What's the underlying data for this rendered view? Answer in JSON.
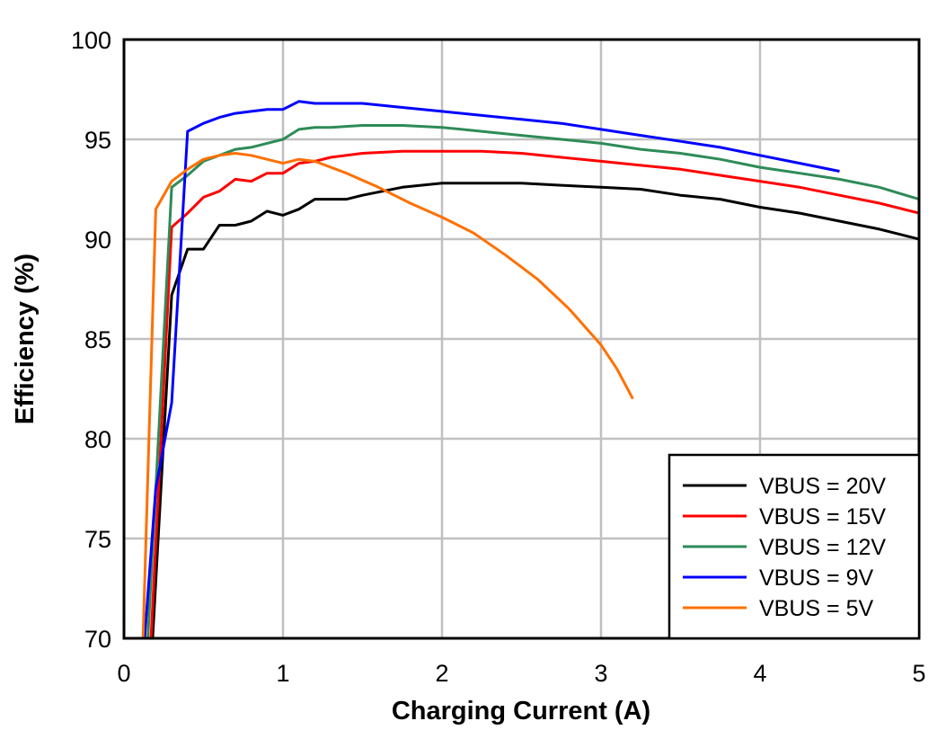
{
  "chart_data": {
    "type": "line",
    "title": "",
    "xlabel": "Charging Current (A)",
    "ylabel": "Efficiency (%)",
    "xlim": [
      0,
      5
    ],
    "ylim": [
      70,
      100
    ],
    "xticks": [
      "0",
      "1",
      "2",
      "3",
      "4",
      "5"
    ],
    "yticks": [
      "70",
      "75",
      "80",
      "85",
      "90",
      "95",
      "100"
    ],
    "grid": true,
    "legend_position": "lower right",
    "series": [
      {
        "name": "VBUS = 20V",
        "color": "#000000",
        "x": [
          0.18,
          0.3,
          0.4,
          0.5,
          0.6,
          0.7,
          0.8,
          0.9,
          1.0,
          1.1,
          1.2,
          1.3,
          1.4,
          1.5,
          1.75,
          2.0,
          2.25,
          2.5,
          2.75,
          3.0,
          3.25,
          3.5,
          3.75,
          4.0,
          4.25,
          4.5,
          4.75,
          5.0
        ],
        "y": [
          70,
          87.2,
          89.5,
          89.5,
          90.7,
          90.7,
          90.9,
          91.4,
          91.2,
          91.5,
          92.0,
          92.0,
          92.0,
          92.2,
          92.6,
          92.8,
          92.8,
          92.8,
          92.7,
          92.6,
          92.5,
          92.2,
          92.0,
          91.6,
          91.3,
          90.9,
          90.5,
          90.0
        ]
      },
      {
        "name": "VBUS = 15V",
        "color": "#ff0000",
        "x": [
          0.17,
          0.3,
          0.4,
          0.5,
          0.6,
          0.7,
          0.8,
          0.9,
          1.0,
          1.1,
          1.2,
          1.3,
          1.5,
          1.75,
          2.0,
          2.25,
          2.5,
          2.75,
          3.0,
          3.25,
          3.5,
          3.75,
          4.0,
          4.25,
          4.5,
          4.75,
          5.0
        ],
        "y": [
          70,
          90.6,
          91.3,
          92.1,
          92.4,
          93.0,
          92.9,
          93.3,
          93.3,
          93.8,
          93.9,
          94.1,
          94.3,
          94.4,
          94.4,
          94.4,
          94.3,
          94.1,
          93.9,
          93.7,
          93.5,
          93.2,
          92.9,
          92.6,
          92.2,
          91.8,
          91.3
        ]
      },
      {
        "name": "VBUS = 12V",
        "color": "#2e8b57",
        "x": [
          0.15,
          0.3,
          0.4,
          0.5,
          0.6,
          0.7,
          0.8,
          0.9,
          1.0,
          1.1,
          1.2,
          1.3,
          1.5,
          1.75,
          2.0,
          2.25,
          2.5,
          2.75,
          3.0,
          3.25,
          3.5,
          3.75,
          4.0,
          4.25,
          4.5,
          4.75,
          5.0
        ],
        "y": [
          70,
          92.6,
          93.2,
          93.9,
          94.2,
          94.5,
          94.6,
          94.8,
          95.0,
          95.5,
          95.6,
          95.6,
          95.7,
          95.7,
          95.6,
          95.4,
          95.2,
          95.0,
          94.8,
          94.5,
          94.3,
          94.0,
          93.6,
          93.3,
          93.0,
          92.6,
          92.0
        ]
      },
      {
        "name": "VBUS = 9V",
        "color": "#0000ff",
        "x": [
          0.13,
          0.2,
          0.3,
          0.4,
          0.5,
          0.6,
          0.7,
          0.8,
          0.9,
          1.0,
          1.1,
          1.2,
          1.5,
          1.75,
          2.0,
          2.25,
          2.5,
          2.75,
          3.0,
          3.25,
          3.5,
          3.75,
          4.0,
          4.25,
          4.5
        ],
        "y": [
          70,
          77.5,
          81.8,
          95.4,
          95.8,
          96.1,
          96.3,
          96.4,
          96.5,
          96.5,
          96.9,
          96.8,
          96.8,
          96.6,
          96.4,
          96.2,
          96.0,
          95.8,
          95.5,
          95.2,
          94.9,
          94.6,
          94.2,
          93.8,
          93.4
        ]
      },
      {
        "name": "VBUS = 5V",
        "color": "#ff7000",
        "x": [
          0.12,
          0.2,
          0.3,
          0.4,
          0.5,
          0.6,
          0.7,
          0.8,
          0.9,
          1.0,
          1.1,
          1.2,
          1.4,
          1.6,
          1.8,
          2.0,
          2.2,
          2.4,
          2.6,
          2.8,
          3.0,
          3.1,
          3.2
        ],
        "y": [
          70,
          91.5,
          92.9,
          93.5,
          94.0,
          94.2,
          94.3,
          94.2,
          94.0,
          93.8,
          94.0,
          93.9,
          93.3,
          92.6,
          91.8,
          91.1,
          90.3,
          89.2,
          88.0,
          86.5,
          84.7,
          83.5,
          82.0
        ]
      }
    ]
  }
}
